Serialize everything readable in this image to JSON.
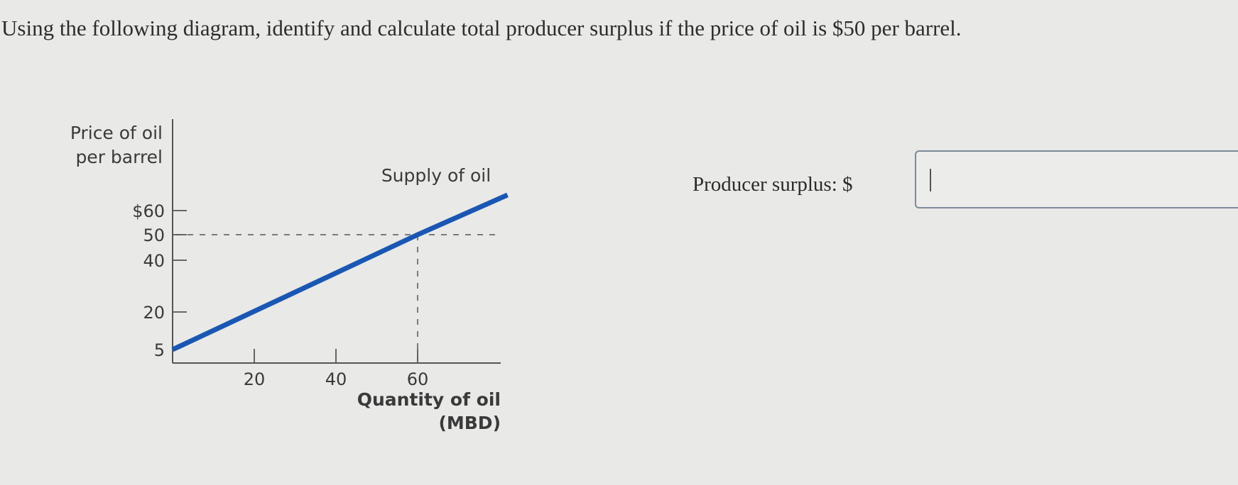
{
  "question": "Using the following diagram, identify and calculate total producer surplus if the price of oil is $50 per barrel.",
  "answer": {
    "label": "Producer surplus: $",
    "value": ""
  },
  "chart_data": {
    "type": "line",
    "title": "",
    "ylabel": [
      "Price of oil",
      "per barrel"
    ],
    "xlabel": [
      "Quantity of oil",
      "(MBD)"
    ],
    "yticks": [
      {
        "value": 60,
        "label": "$60"
      },
      {
        "value": 50,
        "label": "50"
      },
      {
        "value": 40,
        "label": "40"
      },
      {
        "value": 20,
        "label": "20"
      },
      {
        "value": 5,
        "label": "5"
      }
    ],
    "xticks": [
      {
        "value": 20,
        "label": "20"
      },
      {
        "value": 40,
        "label": "40"
      },
      {
        "value": 60,
        "label": "60"
      }
    ],
    "xlim": [
      0,
      80
    ],
    "ylim": [
      0,
      90
    ],
    "series": [
      {
        "name": "Supply of oil",
        "x": [
          0,
          60,
          82
        ],
        "y": [
          5,
          50,
          66.5
        ],
        "color": "#1a57b3"
      }
    ],
    "reference_lines": [
      {
        "type": "horizontal",
        "y": 50,
        "x_to": 80,
        "style": "dashed"
      },
      {
        "type": "vertical",
        "x": 60,
        "y_to": 50,
        "style": "dashed"
      }
    ],
    "grid": false
  }
}
